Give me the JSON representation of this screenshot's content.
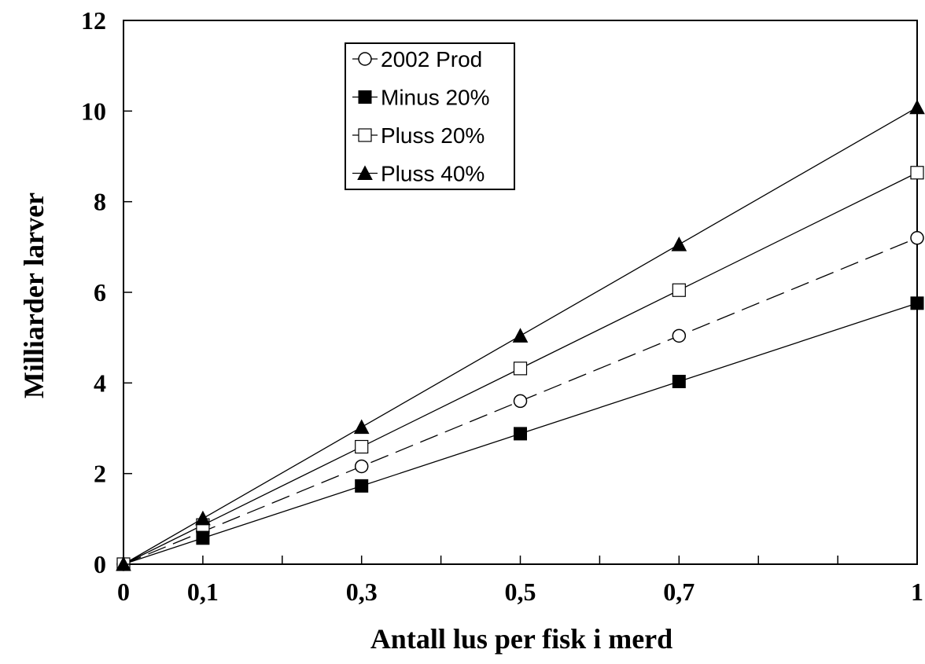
{
  "chart_data": {
    "type": "line",
    "xlabel": "Antall lus per fisk i merd",
    "ylabel": "Milliarder larver",
    "xlim": [
      0,
      1
    ],
    "ylim": [
      0,
      12
    ],
    "x_ticks": [
      0,
      0.1,
      0.2,
      0.3,
      0.4,
      0.5,
      0.6,
      0.7,
      0.8,
      0.9,
      1
    ],
    "x_tick_labels": [
      "0",
      "0,1",
      "",
      "0,3",
      "",
      "0,5",
      "",
      "0,7",
      "",
      "",
      "1"
    ],
    "y_ticks": [
      0,
      2,
      4,
      6,
      8,
      10,
      12
    ],
    "y_tick_labels": [
      "0",
      "2",
      "4",
      "6",
      "8",
      "10",
      "12"
    ],
    "grid": false,
    "legend_position": "top-left",
    "x": [
      0,
      0.1,
      0.3,
      0.5,
      0.7,
      1
    ],
    "series": [
      {
        "name": "2002 Prod",
        "marker": "circle-open",
        "line": "dashed",
        "values": [
          0,
          0.72,
          2.16,
          3.6,
          5.04,
          7.2
        ]
      },
      {
        "name": "Minus 20%",
        "marker": "square-filled",
        "line": "solid",
        "values": [
          0,
          0.576,
          1.728,
          2.88,
          4.032,
          5.76
        ]
      },
      {
        "name": "Pluss 20%",
        "marker": "square-open",
        "line": "solid",
        "values": [
          0,
          0.864,
          2.592,
          4.32,
          6.048,
          8.64
        ]
      },
      {
        "name": "Pluss 40%",
        "marker": "triangle-filled",
        "line": "solid",
        "values": [
          0,
          1.008,
          3.024,
          5.04,
          7.056,
          10.08
        ]
      }
    ]
  }
}
